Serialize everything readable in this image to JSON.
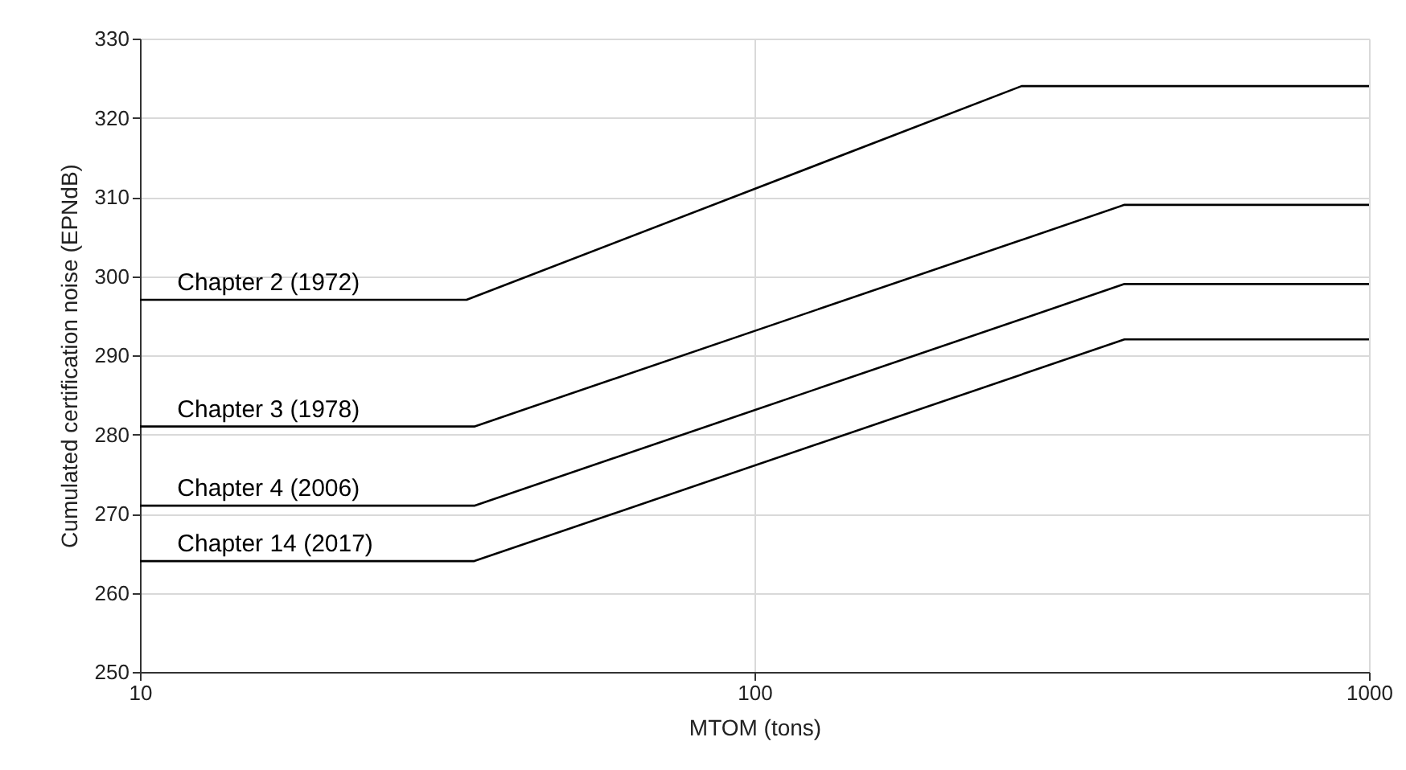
{
  "chart_data": {
    "type": "line",
    "xlabel": "MTOM (tons)",
    "ylabel": "Cumulated certification noise (EPNdB)",
    "log": "x",
    "xlim": [
      10,
      1000
    ],
    "xticks": [
      10,
      100,
      1000
    ],
    "ylim": [
      250,
      330
    ],
    "yticks": [
      250,
      260,
      270,
      280,
      290,
      300,
      310,
      320,
      330
    ],
    "grid": true,
    "legend": false,
    "marker": "none",
    "line_style": "solid",
    "series": [
      {
        "name": "Chapter 2 (1972)",
        "color": "#000000",
        "x": [
          10,
          34,
          272,
          1000
        ],
        "values": [
          297,
          297,
          324,
          324
        ]
      },
      {
        "name": "Chapter 3 (1978)",
        "color": "#000000",
        "x": [
          10,
          35,
          400,
          1000
        ],
        "values": [
          281,
          281,
          309,
          309
        ]
      },
      {
        "name": "Chapter 4 (2006)",
        "color": "#000000",
        "x": [
          10,
          35,
          400,
          1000
        ],
        "values": [
          271,
          271,
          299,
          299
        ]
      },
      {
        "name": "Chapter 14 (2017)",
        "color": "#000000",
        "x": [
          10,
          35,
          400,
          1000
        ],
        "values": [
          264,
          264,
          292,
          292
        ]
      }
    ]
  }
}
